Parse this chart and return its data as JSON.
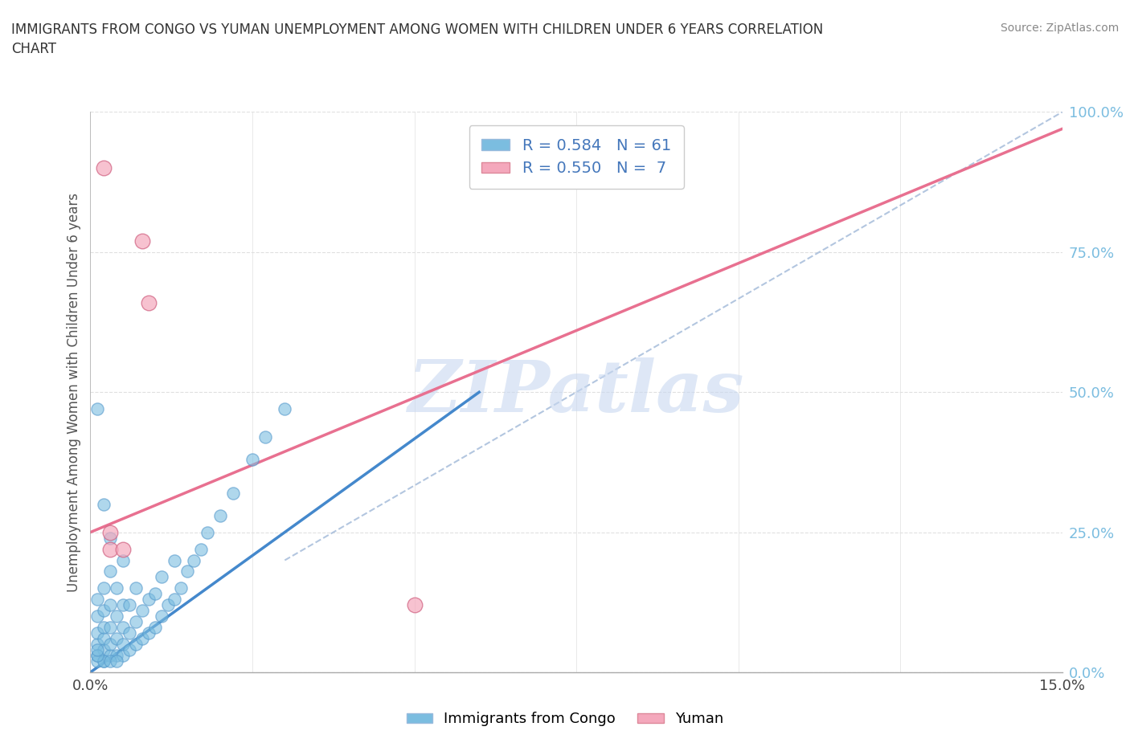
{
  "title": "IMMIGRANTS FROM CONGO VS YUMAN UNEMPLOYMENT AMONG WOMEN WITH CHILDREN UNDER 6 YEARS CORRELATION\nCHART",
  "source": "Source: ZipAtlas.com",
  "ylabel": "Unemployment Among Women with Children Under 6 years",
  "xlim": [
    0.0,
    0.15
  ],
  "ylim": [
    0.0,
    1.0
  ],
  "xticks": [
    0.0,
    0.025,
    0.05,
    0.075,
    0.1,
    0.125,
    0.15
  ],
  "yticks": [
    0.0,
    0.25,
    0.5,
    0.75,
    1.0
  ],
  "ytick_labels": [
    "0.0%",
    "25.0%",
    "50.0%",
    "75.0%",
    "100.0%"
  ],
  "congo_color": "#7bbde0",
  "yuman_color": "#f4a8bc",
  "congo_R": 0.584,
  "congo_N": 61,
  "yuman_R": 0.55,
  "yuman_N": 7,
  "watermark": "ZIPatlas",
  "watermark_color": "#c8d8f0",
  "congo_scatter_x": [
    0.001,
    0.001,
    0.001,
    0.001,
    0.001,
    0.002,
    0.002,
    0.002,
    0.002,
    0.002,
    0.002,
    0.003,
    0.003,
    0.003,
    0.003,
    0.003,
    0.004,
    0.004,
    0.004,
    0.004,
    0.005,
    0.005,
    0.005,
    0.005,
    0.005,
    0.006,
    0.006,
    0.006,
    0.007,
    0.007,
    0.007,
    0.008,
    0.008,
    0.009,
    0.009,
    0.01,
    0.01,
    0.011,
    0.011,
    0.012,
    0.013,
    0.013,
    0.014,
    0.015,
    0.016,
    0.017,
    0.018,
    0.02,
    0.022,
    0.025,
    0.027,
    0.03,
    0.001,
    0.002,
    0.003,
    0.004,
    0.003,
    0.002,
    0.001,
    0.001,
    0.001
  ],
  "congo_scatter_y": [
    0.03,
    0.05,
    0.07,
    0.1,
    0.13,
    0.02,
    0.04,
    0.06,
    0.08,
    0.11,
    0.15,
    0.03,
    0.05,
    0.08,
    0.12,
    0.18,
    0.03,
    0.06,
    0.1,
    0.15,
    0.03,
    0.05,
    0.08,
    0.12,
    0.2,
    0.04,
    0.07,
    0.12,
    0.05,
    0.09,
    0.15,
    0.06,
    0.11,
    0.07,
    0.13,
    0.08,
    0.14,
    0.1,
    0.17,
    0.12,
    0.13,
    0.2,
    0.15,
    0.18,
    0.2,
    0.22,
    0.25,
    0.28,
    0.32,
    0.38,
    0.42,
    0.47,
    0.02,
    0.02,
    0.02,
    0.02,
    0.24,
    0.3,
    0.47,
    0.03,
    0.04
  ],
  "yuman_scatter_x": [
    0.002,
    0.003,
    0.003,
    0.005,
    0.008,
    0.009,
    0.05
  ],
  "yuman_scatter_y": [
    0.9,
    0.22,
    0.25,
    0.22,
    0.77,
    0.66,
    0.12
  ],
  "congo_trend_x": [
    0.0,
    0.06
  ],
  "congo_trend_y": [
    0.0,
    0.5
  ],
  "yuman_trend_x": [
    0.0,
    0.15
  ],
  "yuman_trend_y": [
    0.25,
    0.97
  ],
  "diag_line_x": [
    0.03,
    0.15
  ],
  "diag_line_y": [
    0.2,
    1.0
  ],
  "background_color": "#ffffff",
  "grid_color": "#e0e0e0"
}
